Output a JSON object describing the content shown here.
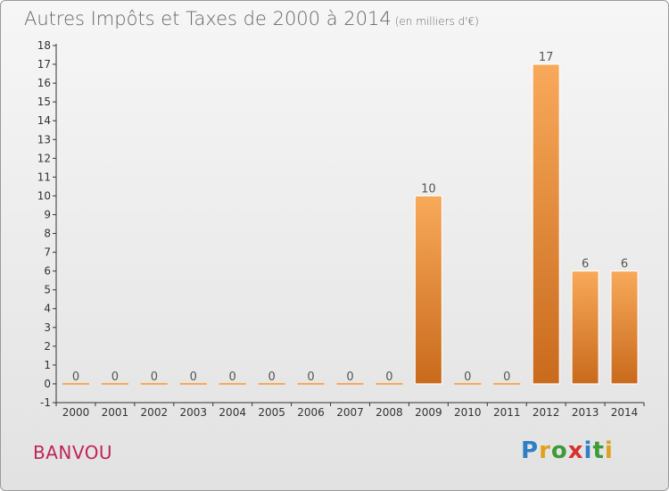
{
  "header": {
    "title": "Autres Impôts et Taxes de 2000 à 2014",
    "unit": "(en milliers d'€)"
  },
  "footer": {
    "town": "BANVOU",
    "logo": [
      "P",
      "r",
      "o",
      "x",
      "i",
      "t",
      "i"
    ],
    "logo_colors": [
      "#2f7fc4",
      "#e0a020",
      "#3f9a3a",
      "#d83030",
      "#2f7fc4",
      "#3f9a3a",
      "#e0a020"
    ]
  },
  "chart_data": {
    "type": "bar",
    "title": "Autres Impôts et Taxes de 2000 à 2014",
    "subtitle": "(en milliers d'€)",
    "categories": [
      "2000",
      "2001",
      "2002",
      "2003",
      "2004",
      "2005",
      "2006",
      "2007",
      "2008",
      "2009",
      "2010",
      "2011",
      "2012",
      "2013",
      "2014"
    ],
    "values": [
      0,
      0,
      0,
      0,
      0,
      0,
      0,
      0,
      0,
      10,
      0,
      0,
      17,
      6,
      6
    ],
    "value_labels": [
      "0",
      "0",
      "0",
      "0",
      "0",
      "0",
      "0",
      "0",
      "0",
      "10",
      "0",
      "0",
      "17",
      "6",
      "6"
    ],
    "ylim": [
      -1,
      18
    ],
    "yticks": [
      "-1",
      "0",
      "1",
      "2",
      "3",
      "4",
      "5",
      "6",
      "7",
      "8",
      "9",
      "10",
      "11",
      "12",
      "13",
      "14",
      "15",
      "16",
      "17",
      "18"
    ],
    "bar_color_top": "#f8a95a",
    "bar_color_bottom": "#c96a1c",
    "grid": false
  }
}
